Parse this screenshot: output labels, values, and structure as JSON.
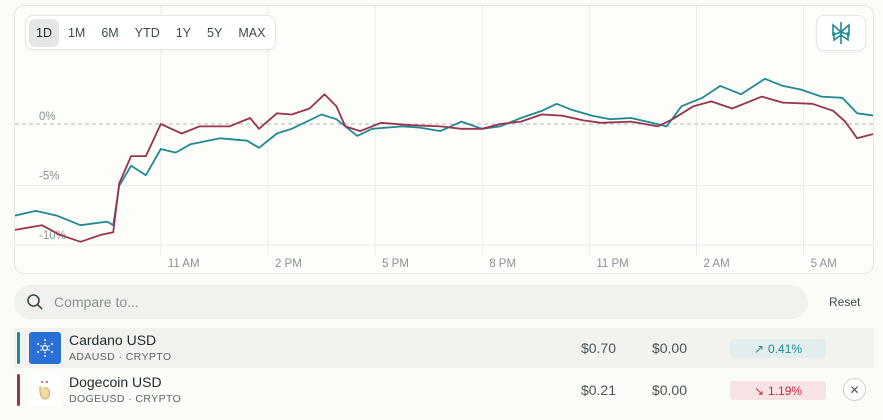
{
  "range_buttons": [
    "1D",
    "1M",
    "6M",
    "YTD",
    "1Y",
    "5Y",
    "MAX"
  ],
  "active_range": "1D",
  "logo_icon": "perplexity-logo-icon",
  "search": {
    "placeholder": "Compare to...",
    "value": ""
  },
  "reset_label": "Reset",
  "colors": {
    "ada": "#1f8a94",
    "doge": "#9a3350",
    "pos_bg": "#e2eeee",
    "pos_text": "#1f8a94",
    "neg_bg": "#f7e2e4",
    "neg_text": "#c8283f"
  },
  "rows": [
    {
      "name": "Cardano USD",
      "ticker": "ADAUSD · CRYPTO",
      "price": "$0.70",
      "change": "$0.00",
      "pct": "0.41%",
      "direction": "up",
      "arrow": "↗",
      "removable": false
    },
    {
      "name": "Dogecoin USD",
      "ticker": "DOGEUSD · CRYPTO",
      "price": "$0.21",
      "change": "$0.00",
      "pct": "1.19%",
      "direction": "down",
      "arrow": "↘",
      "removable": true
    }
  ],
  "chart_data": {
    "type": "line",
    "x_ticks": [
      "11 AM",
      "2 PM",
      "5 PM",
      "8 PM",
      "11 PM",
      "2 AM",
      "5 AM"
    ],
    "y_ticks": [
      "0%",
      "-5%",
      "-10%"
    ],
    "y_tick_values": [
      0,
      -5,
      -10
    ],
    "baseline": 0,
    "ylim": [
      -10.5,
      10.2
    ],
    "xlim": [
      "06:55",
      "07:00"
    ],
    "grid": true,
    "series": [
      {
        "key": "ada",
        "points": [
          [
            "06:55",
            -7.7
          ],
          [
            "07:30",
            -7.3
          ],
          [
            "08:05",
            -7.7
          ],
          [
            "08:45",
            -8.5
          ],
          [
            "09:30",
            -8.2
          ],
          [
            "09:40",
            -8.5
          ],
          [
            "09:50",
            -5.2
          ],
          [
            "10:10",
            -3.5
          ],
          [
            "10:35",
            -4.3
          ],
          [
            "11:00",
            -2.1
          ],
          [
            "11:25",
            -2.4
          ],
          [
            "11:50",
            -1.7
          ],
          [
            "12:40",
            -1.2
          ],
          [
            "13:25",
            -1.4
          ],
          [
            "13:45",
            -2.0
          ],
          [
            "14:15",
            -0.8
          ],
          [
            "14:40",
            -0.4
          ],
          [
            "15:30",
            0.8
          ],
          [
            "15:55",
            0.4
          ],
          [
            "16:30",
            -1.0
          ],
          [
            "16:55",
            -0.4
          ],
          [
            "17:45",
            -0.2
          ],
          [
            "18:15",
            -0.3
          ],
          [
            "18:50",
            -0.6
          ],
          [
            "19:25",
            0.2
          ],
          [
            "20:00",
            -0.4
          ],
          [
            "20:30",
            -0.2
          ],
          [
            "21:05",
            0.5
          ],
          [
            "21:40",
            1.1
          ],
          [
            "22:05",
            1.7
          ],
          [
            "22:30",
            1.2
          ],
          [
            "23:05",
            0.7
          ],
          [
            "23:35",
            0.4
          ],
          [
            "00:10",
            0.5
          ],
          [
            "00:45",
            0.1
          ],
          [
            "01:10",
            -0.2
          ],
          [
            "01:35",
            1.5
          ],
          [
            "02:10",
            2.2
          ],
          [
            "02:40",
            3.2
          ],
          [
            "03:15",
            2.5
          ],
          [
            "03:55",
            3.8
          ],
          [
            "04:25",
            3.2
          ],
          [
            "04:55",
            2.9
          ],
          [
            "05:30",
            2.3
          ],
          [
            "06:05",
            2.2
          ],
          [
            "06:30",
            0.9
          ],
          [
            "07:00",
            0.7
          ]
        ]
      },
      {
        "key": "doge",
        "points": [
          [
            "06:55",
            -8.9
          ],
          [
            "07:40",
            -8.5
          ],
          [
            "08:10",
            -9.3
          ],
          [
            "08:45",
            -9.9
          ],
          [
            "09:20",
            -9.3
          ],
          [
            "09:40",
            -9.1
          ],
          [
            "09:50",
            -5.0
          ],
          [
            "10:10",
            -2.7
          ],
          [
            "10:35",
            -2.7
          ],
          [
            "11:00",
            0.0
          ],
          [
            "11:35",
            -0.8
          ],
          [
            "12:05",
            -0.2
          ],
          [
            "12:55",
            -0.2
          ],
          [
            "13:30",
            0.5
          ],
          [
            "13:45",
            -0.4
          ],
          [
            "14:15",
            0.9
          ],
          [
            "14:40",
            0.8
          ],
          [
            "15:10",
            1.3
          ],
          [
            "15:35",
            2.5
          ],
          [
            "15:55",
            1.5
          ],
          [
            "16:10",
            -0.2
          ],
          [
            "16:35",
            -0.6
          ],
          [
            "17:10",
            0.1
          ],
          [
            "18:00",
            -0.1
          ],
          [
            "18:50",
            -0.2
          ],
          [
            "19:25",
            -0.4
          ],
          [
            "20:00",
            -0.4
          ],
          [
            "20:30",
            0.0
          ],
          [
            "21:05",
            0.2
          ],
          [
            "21:40",
            0.8
          ],
          [
            "22:15",
            0.7
          ],
          [
            "22:50",
            0.3
          ],
          [
            "23:20",
            0.1
          ],
          [
            "00:10",
            0.2
          ],
          [
            "00:55",
            -0.2
          ],
          [
            "01:20",
            0.4
          ],
          [
            "01:55",
            1.5
          ],
          [
            "02:25",
            1.9
          ],
          [
            "03:00",
            1.3
          ],
          [
            "03:50",
            2.3
          ],
          [
            "04:25",
            1.8
          ],
          [
            "05:15",
            1.7
          ],
          [
            "05:50",
            1.1
          ],
          [
            "06:10",
            0.2
          ],
          [
            "06:30",
            -1.2
          ],
          [
            "07:00",
            -0.8
          ]
        ]
      }
    ]
  }
}
